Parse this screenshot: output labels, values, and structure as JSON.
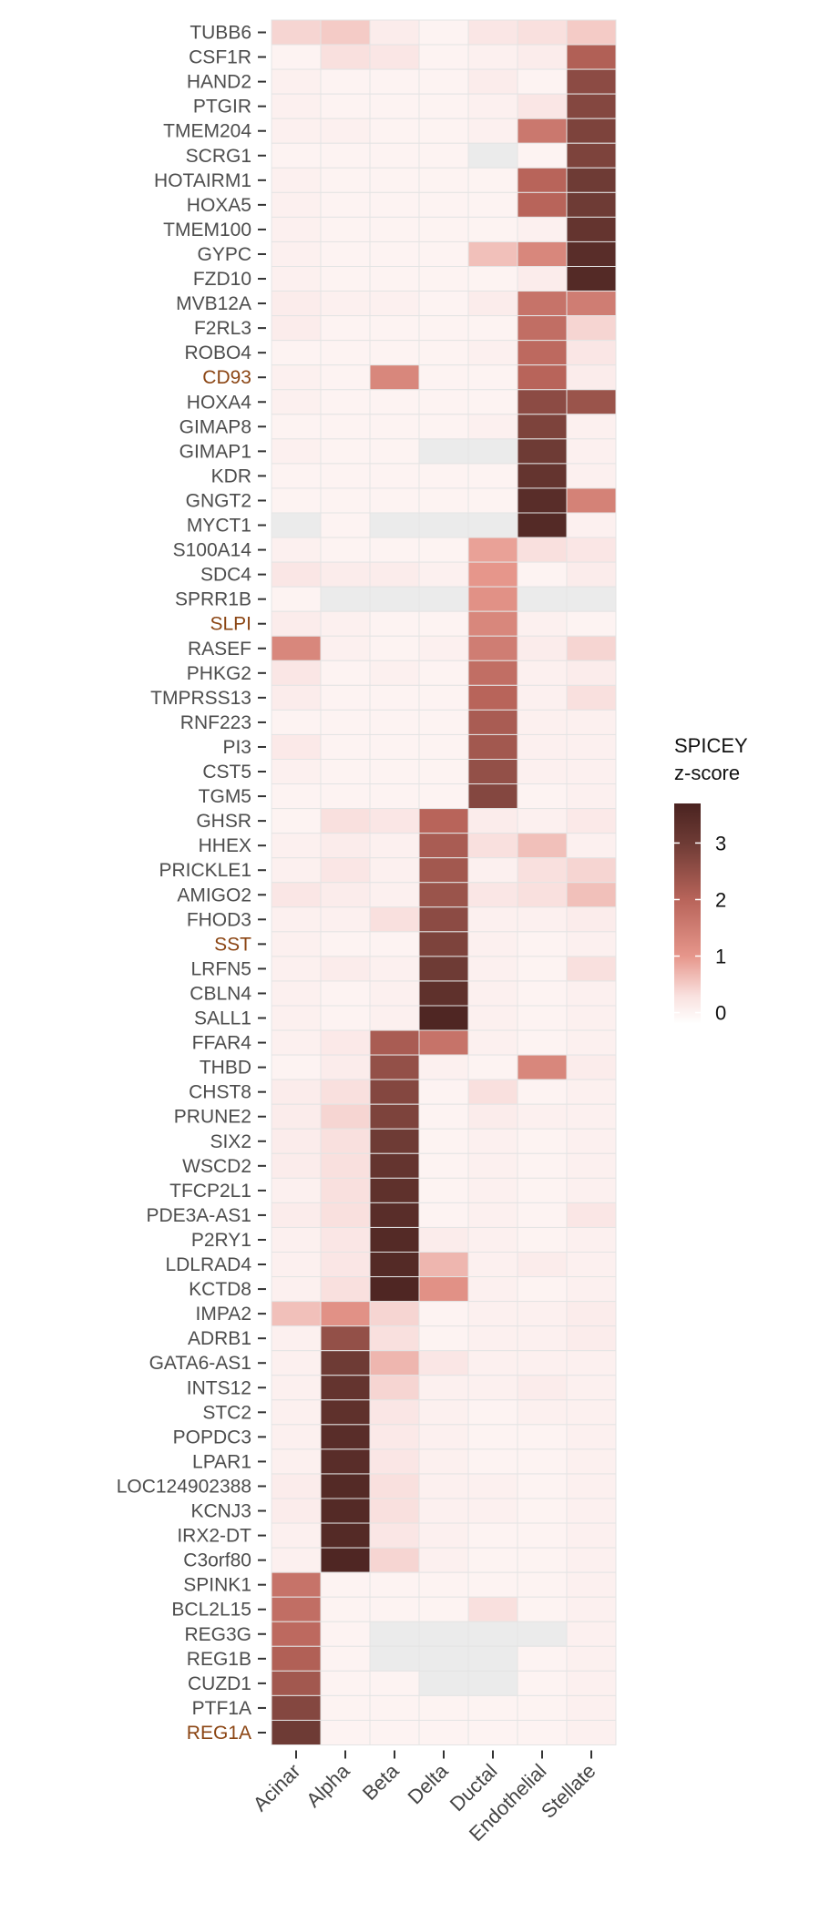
{
  "chart_data": {
    "type": "heatmap",
    "title": "",
    "xlabel": "",
    "ylabel": "",
    "columns": [
      "Acinar",
      "Alpha",
      "Beta",
      "Delta",
      "Ductal",
      "Endothelial",
      "Stellate"
    ],
    "rows": [
      "TUBB6",
      "CSF1R",
      "HAND2",
      "PTGIR",
      "TMEM204",
      "SCRG1",
      "HOTAIRM1",
      "HOXA5",
      "TMEM100",
      "GYPC",
      "FZD10",
      "MVB12A",
      "F2RL3",
      "ROBO4",
      "CD93",
      "HOXA4",
      "GIMAP8",
      "GIMAP1",
      "KDR",
      "GNGT2",
      "MYCT1",
      "S100A14",
      "SDC4",
      "SPRR1B",
      "SLPI",
      "RASEF",
      "PHKG2",
      "TMPRSS13",
      "RNF223",
      "PI3",
      "CST5",
      "TGM5",
      "GHSR",
      "HHEX",
      "PRICKLE1",
      "AMIGO2",
      "FHOD3",
      "SST",
      "LRFN5",
      "CBLN4",
      "SALL1",
      "FFAR4",
      "THBD",
      "CHST8",
      "PRUNE2",
      "SIX2",
      "WSCD2",
      "TFCP2L1",
      "PDE3A-AS1",
      "P2RY1",
      "LDLRAD4",
      "KCTD8",
      "IMPA2",
      "ADRB1",
      "GATA6-AS1",
      "INTS12",
      "STC2",
      "POPDC3",
      "LPAR1",
      "LOC124902388",
      "KCNJ3",
      "IRX2-DT",
      "C3orf80",
      "SPINK1",
      "BCL2L15",
      "REG3G",
      "REG1B",
      "CUZD1",
      "PTF1A",
      "REG1A"
    ],
    "highlighted_rows": [
      "CD93",
      "SLPI",
      "SST",
      "REG1A"
    ],
    "highlight_color": "#8B4513",
    "label_color": "#4d4d4d",
    "na_color": "#EBEBEB",
    "values": [
      [
        0.4,
        0.5,
        0.1,
        0,
        0.2,
        0.3,
        0.5
      ],
      [
        0,
        0.3,
        0.2,
        0,
        0.05,
        0.1,
        2.1
      ],
      [
        0.05,
        0,
        0,
        0,
        0.1,
        0,
        2.6
      ],
      [
        0.05,
        0,
        0,
        0,
        0.05,
        0.2,
        2.7
      ],
      [
        0.05,
        0.05,
        0,
        0,
        0.05,
        1.6,
        2.8
      ],
      [
        0,
        0,
        0,
        0,
        null,
        0,
        2.8
      ],
      [
        0.05,
        0,
        0,
        0,
        0,
        2.0,
        3.0
      ],
      [
        0.05,
        0,
        0,
        0,
        0,
        2.0,
        3.0
      ],
      [
        0.05,
        0,
        0,
        0,
        0,
        0.05,
        3.2
      ],
      [
        0.05,
        0,
        0,
        0,
        0.6,
        1.3,
        3.4
      ],
      [
        0.05,
        0,
        0,
        0,
        0,
        0.1,
        3.5
      ],
      [
        0.1,
        0.05,
        0.05,
        0,
        0.1,
        1.7,
        1.5
      ],
      [
        0.1,
        0,
        0,
        0,
        0,
        1.8,
        0.4
      ],
      [
        0,
        0,
        0,
        0,
        0.05,
        1.9,
        0.2
      ],
      [
        0.05,
        0,
        1.3,
        0,
        0,
        2.0,
        0.1
      ],
      [
        0.05,
        0,
        0,
        0,
        0,
        2.6,
        2.4
      ],
      [
        0,
        0,
        0,
        0,
        0.05,
        2.8,
        0.05
      ],
      [
        0.05,
        0,
        0,
        null,
        null,
        3.0,
        0.05
      ],
      [
        0,
        0,
        0,
        0,
        0,
        3.2,
        0.05
      ],
      [
        0,
        0,
        0,
        0,
        0,
        3.4,
        1.4
      ],
      [
        null,
        0,
        null,
        null,
        null,
        3.5,
        0.05
      ],
      [
        0.05,
        0,
        0,
        0,
        0.9,
        0.3,
        0.2
      ],
      [
        0.2,
        0.1,
        0.1,
        0.05,
        1.0,
        0,
        0.1
      ],
      [
        0,
        null,
        null,
        null,
        1.1,
        null,
        null
      ],
      [
        0.1,
        0.05,
        0,
        0,
        1.3,
        0.05,
        0
      ],
      [
        1.3,
        0.05,
        0,
        0.05,
        1.5,
        0.1,
        0.4
      ],
      [
        0.2,
        0,
        0.05,
        0,
        1.8,
        0.05,
        0.1
      ],
      [
        0.1,
        0,
        0,
        0,
        2.0,
        0.05,
        0.3
      ],
      [
        0,
        0,
        0,
        0,
        2.2,
        0.05,
        0.05
      ],
      [
        0.15,
        0,
        0,
        0,
        2.3,
        0.05,
        0.05
      ],
      [
        0.05,
        0,
        0,
        0,
        2.5,
        0.05,
        0.05
      ],
      [
        0,
        0,
        0,
        0,
        2.7,
        0,
        0.05
      ],
      [
        0,
        0.3,
        0.2,
        2.0,
        0.1,
        0.05,
        0.15
      ],
      [
        0.05,
        0.1,
        0.05,
        2.2,
        0.3,
        0.6,
        0.05
      ],
      [
        0.05,
        0.2,
        0.05,
        2.3,
        0.05,
        0.3,
        0.4
      ],
      [
        0.2,
        0.1,
        0.05,
        2.4,
        0.2,
        0.3,
        0.6
      ],
      [
        0.05,
        0.05,
        0.3,
        2.6,
        0.05,
        0.05,
        0.1
      ],
      [
        0.05,
        0,
        0,
        2.8,
        0.05,
        0,
        0.05
      ],
      [
        0.05,
        0.1,
        0.05,
        3.0,
        0.05,
        0,
        0.3
      ],
      [
        0.05,
        0,
        0.05,
        3.3,
        0.05,
        0,
        0.05
      ],
      [
        0.05,
        0,
        0.05,
        3.6,
        0.05,
        0,
        0.05
      ],
      [
        0.05,
        0.15,
        2.2,
        1.7,
        0.05,
        0,
        0.05
      ],
      [
        0,
        0.1,
        2.5,
        0.05,
        0,
        1.3,
        0.1
      ],
      [
        0.1,
        0.3,
        2.7,
        0,
        0.3,
        0,
        0.05
      ],
      [
        0.1,
        0.4,
        2.8,
        0,
        0.1,
        0.05,
        0.05
      ],
      [
        0.1,
        0.3,
        3.0,
        0,
        0.05,
        0,
        0.05
      ],
      [
        0.1,
        0.3,
        3.2,
        0,
        0.05,
        0,
        0.05
      ],
      [
        0.05,
        0.3,
        3.3,
        0,
        0.05,
        0,
        0.05
      ],
      [
        0.1,
        0.3,
        3.4,
        0,
        0.05,
        0,
        0.2
      ],
      [
        0.05,
        0.2,
        3.5,
        0.1,
        0.05,
        0,
        0.05
      ],
      [
        0.05,
        0.2,
        3.5,
        0.7,
        0.05,
        0.1,
        0.05
      ],
      [
        0.05,
        0.3,
        3.6,
        1.1,
        0.05,
        0,
        0.05
      ],
      [
        0.6,
        1.1,
        0.4,
        0,
        0.05,
        0.05,
        0.1
      ],
      [
        0.05,
        2.5,
        0.3,
        0,
        0.05,
        0.05,
        0.1
      ],
      [
        0.05,
        3.0,
        0.7,
        0.2,
        0.05,
        0.05,
        0.05
      ],
      [
        0.05,
        3.2,
        0.4,
        0.05,
        0.05,
        0.1,
        0.05
      ],
      [
        0.05,
        3.3,
        0.2,
        0.05,
        0,
        0.05,
        0.05
      ],
      [
        0.05,
        3.4,
        0.15,
        0.05,
        0,
        0,
        0.05
      ],
      [
        0.05,
        3.4,
        0.2,
        0.05,
        0,
        0,
        0.05
      ],
      [
        0.1,
        3.5,
        0.3,
        0.05,
        0.05,
        0,
        0.05
      ],
      [
        0.1,
        3.5,
        0.3,
        0.05,
        0.05,
        0,
        0.05
      ],
      [
        0.05,
        3.5,
        0.2,
        0.05,
        0,
        0,
        0.05
      ],
      [
        0.05,
        3.6,
        0.4,
        0.05,
        0,
        0,
        0.05
      ],
      [
        1.7,
        0,
        0,
        0,
        0,
        0,
        0.05
      ],
      [
        1.8,
        0,
        0,
        0,
        0.3,
        0,
        0.05
      ],
      [
        1.9,
        0,
        null,
        null,
        null,
        null,
        0.05
      ],
      [
        2.1,
        0,
        null,
        null,
        null,
        0,
        0.05
      ],
      [
        2.3,
        0,
        0,
        null,
        null,
        0,
        0.05
      ],
      [
        2.7,
        0,
        0,
        0,
        0,
        0,
        0.05
      ],
      [
        3.0,
        0,
        0,
        0,
        0,
        0,
        0.05
      ]
    ],
    "legend": {
      "title_line1": "SPICEY",
      "title_line2": "z-score",
      "ticks": [
        0,
        1,
        2,
        3
      ],
      "placement": "right"
    },
    "color_scale": {
      "min": -0.2,
      "max": 3.7,
      "stops": [
        {
          "value": -0.2,
          "color": "#FFFFFF"
        },
        {
          "value": 0.3,
          "color": "#F9E0DE"
        },
        {
          "value": 1.0,
          "color": "#E6968B"
        },
        {
          "value": 2.0,
          "color": "#B8645A"
        },
        {
          "value": 3.0,
          "color": "#6E3B35"
        },
        {
          "value": 3.7,
          "color": "#4A2320"
        }
      ]
    }
  }
}
